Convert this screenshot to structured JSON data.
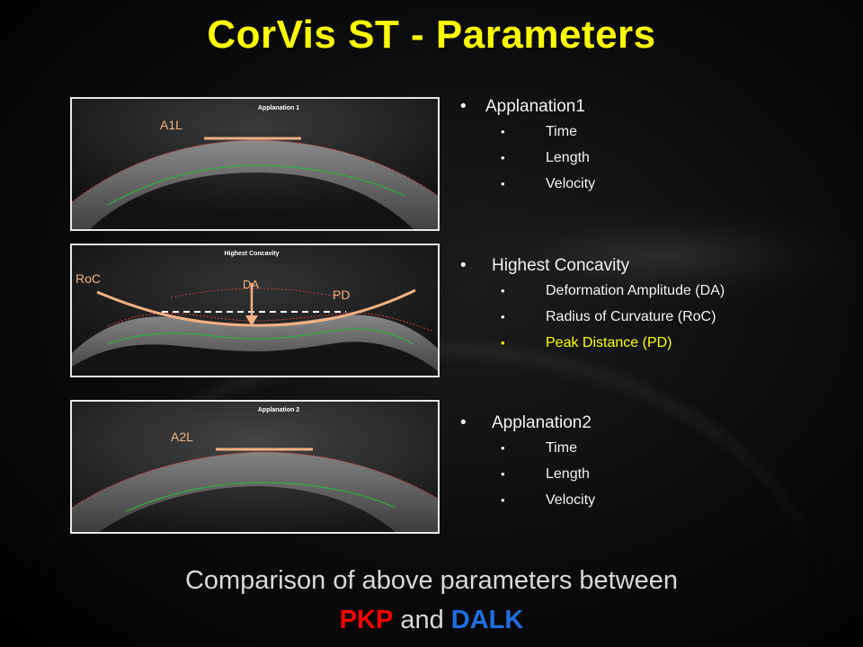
{
  "title": "CorVis ST - Parameters",
  "panels": [
    {
      "header": "Applanation 1",
      "labels": {
        "line": "A1L"
      }
    },
    {
      "header": "Highest Concavity",
      "labels": {
        "roc": "RoC",
        "da": "DA",
        "pd": "PD"
      }
    },
    {
      "header": "Applanation 2",
      "labels": {
        "line": "A2L"
      }
    }
  ],
  "bullets": [
    {
      "heading": "Applanation1",
      "items": [
        "Time",
        "Length",
        "Velocity"
      ]
    },
    {
      "heading": "Highest Concavity",
      "items": [
        "Deformation Amplitude (DA)",
        "Radius of Curvature (RoC)",
        "Peak Distance (PD)"
      ],
      "highlight_index": 2
    },
    {
      "heading": "Applanation2",
      "items": [
        "Time",
        "Length",
        "Velocity"
      ]
    }
  ],
  "footer": {
    "line1": "Comparison of above parameters between",
    "pkp": "PKP",
    "and": "and",
    "dalk": "DALK"
  },
  "colors": {
    "title": "#ffff00",
    "highlight": "#ffff00",
    "pkp": "#ff0000",
    "dalk": "#1f6fe0",
    "annotation": "#f4b183"
  },
  "bullet_glyph": "•"
}
